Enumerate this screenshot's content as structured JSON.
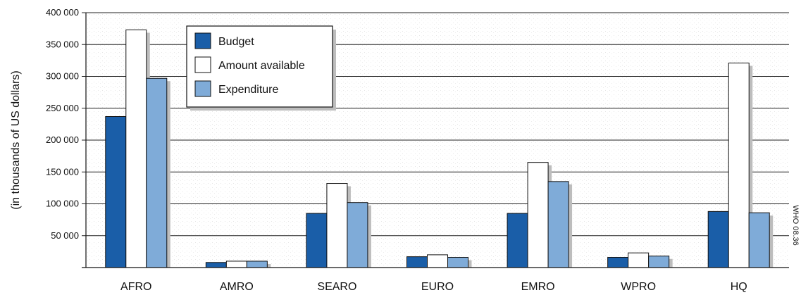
{
  "chart_data": {
    "type": "bar",
    "categories": [
      "AFRO",
      "AMRO",
      "SEARO",
      "EURO",
      "EMRO",
      "WPRO",
      "HQ"
    ],
    "series": [
      {
        "name": "Budget",
        "color": "#1a5ea8",
        "values": [
          237000,
          8000,
          85000,
          17000,
          85000,
          16000,
          88000
        ]
      },
      {
        "name": "Amount available",
        "color": "#ffffff",
        "values": [
          373000,
          10000,
          132000,
          20000,
          165000,
          23000,
          321000
        ]
      },
      {
        "name": "Expenditure",
        "color": "#7fabd8",
        "values": [
          297000,
          10000,
          102000,
          16000,
          135000,
          18000,
          86000
        ]
      }
    ],
    "ylabel": "(in thousands of US dollars)",
    "ylim": [
      0,
      400000
    ],
    "yticks": [
      50000,
      100000,
      150000,
      200000,
      250000,
      300000,
      350000,
      400000
    ],
    "ytick_labels": [
      "50 000",
      "100 000",
      "150 000",
      "200 000",
      "250 000",
      "300 000",
      "350 000",
      "400 000"
    ],
    "grid": true,
    "legend_position": "top-left",
    "watermark": "WHO 08.36"
  }
}
